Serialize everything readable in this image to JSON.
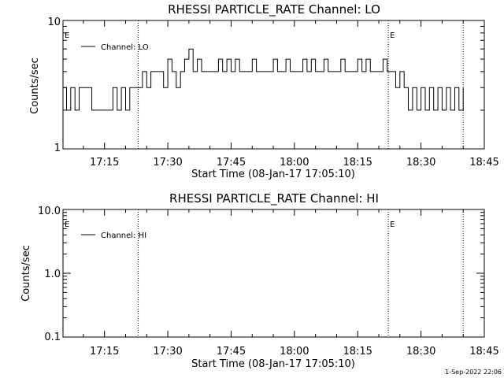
{
  "chart_data": [
    {
      "type": "line",
      "title": "RHESSI PARTICLE_RATE Channel: LO",
      "xlabel": "Start Time (08-Jan-17 17:05:10)",
      "ylabel": "Counts/sec",
      "y_scale": "log",
      "ylim": [
        1,
        10
      ],
      "y_tick_labels": [
        "1",
        "10"
      ],
      "x_start": "17:05:10",
      "x_end": "18:45",
      "x_tick_labels": [
        "17:15",
        "17:30",
        "17:45",
        "18:00",
        "18:15",
        "18:30",
        "18:45"
      ],
      "legend": {
        "placement": "top-left",
        "entries": [
          "Channel: LO"
        ]
      },
      "event_marks": [
        {
          "time": "17:05:10",
          "label": "E"
        },
        {
          "time": "17:23:00",
          "label": ""
        },
        {
          "time": "18:22:15",
          "label": "E"
        },
        {
          "time": "18:40:00",
          "label": ""
        }
      ],
      "series": [
        {
          "name": "Channel: LO",
          "x": [
            "17:05:10",
            "17:06",
            "17:07",
            "17:08",
            "17:09",
            "17:10",
            "17:11",
            "17:12",
            "17:13",
            "17:14",
            "17:15",
            "17:16",
            "17:17",
            "17:18",
            "17:19",
            "17:20",
            "17:21",
            "17:22",
            "17:23",
            "17:24",
            "17:25",
            "17:26",
            "17:27",
            "17:28",
            "17:29",
            "17:30",
            "17:31",
            "17:32",
            "17:33",
            "17:34",
            "17:35",
            "17:36",
            "17:37",
            "17:38",
            "17:39",
            "17:40",
            "17:41",
            "17:42",
            "17:43",
            "17:44",
            "17:45",
            "17:46",
            "17:47",
            "17:48",
            "17:49",
            "17:50",
            "17:51",
            "17:52",
            "17:53",
            "17:54",
            "17:55",
            "17:56",
            "17:57",
            "17:58",
            "17:59",
            "18:00",
            "18:01",
            "18:02",
            "18:03",
            "18:04",
            "18:05",
            "18:06",
            "18:07",
            "18:08",
            "18:09",
            "18:10",
            "18:11",
            "18:12",
            "18:13",
            "18:14",
            "18:15",
            "18:16",
            "18:17",
            "18:18",
            "18:19",
            "18:20",
            "18:21",
            "18:22",
            "18:23",
            "18:24",
            "18:25",
            "18:26",
            "18:27",
            "18:28",
            "18:29",
            "18:30",
            "18:31",
            "18:32",
            "18:33",
            "18:34",
            "18:35",
            "18:36",
            "18:37",
            "18:38",
            "18:39",
            "18:40"
          ],
          "values": [
            3,
            2,
            3,
            2,
            3,
            3,
            3,
            2,
            2,
            2,
            2,
            2,
            3,
            2,
            3,
            2,
            3,
            3,
            3,
            4,
            3,
            4,
            4,
            4,
            3,
            5,
            4,
            3,
            4,
            5,
            6,
            4,
            5,
            4,
            4,
            4,
            4,
            5,
            4,
            5,
            4,
            5,
            4,
            4,
            4,
            5,
            4,
            4,
            4,
            4,
            5,
            4,
            4,
            5,
            4,
            4,
            4,
            5,
            4,
            5,
            4,
            4,
            5,
            4,
            4,
            4,
            5,
            4,
            4,
            4,
            5,
            4,
            5,
            4,
            4,
            4,
            5,
            4,
            4,
            3,
            4,
            3,
            2,
            3,
            2,
            3,
            2,
            3,
            2,
            3,
            2,
            3,
            2,
            3,
            2,
            3
          ]
        }
      ]
    },
    {
      "type": "line",
      "title": "RHESSI PARTICLE_RATE Channel: HI",
      "xlabel": "Start Time (08-Jan-17 17:05:10)",
      "ylabel": "Counts/sec",
      "y_scale": "log",
      "ylim": [
        0.1,
        10.0
      ],
      "y_tick_labels": [
        "0.1",
        "1.0",
        "10.0"
      ],
      "x_start": "17:05:10",
      "x_end": "18:45",
      "x_tick_labels": [
        "17:15",
        "17:30",
        "17:45",
        "18:00",
        "18:15",
        "18:30",
        "18:45"
      ],
      "legend": {
        "placement": "top-left",
        "entries": [
          "Channel: HI"
        ]
      },
      "event_marks": [
        {
          "time": "17:05:10",
          "label": "E"
        },
        {
          "time": "17:23:00",
          "label": ""
        },
        {
          "time": "18:22:15",
          "label": "E"
        },
        {
          "time": "18:40:00",
          "label": ""
        }
      ],
      "series": [
        {
          "name": "Channel: HI",
          "x": [],
          "values": []
        }
      ]
    }
  ],
  "footer": {
    "timestamp": "1-Sep-2022 22:06"
  }
}
